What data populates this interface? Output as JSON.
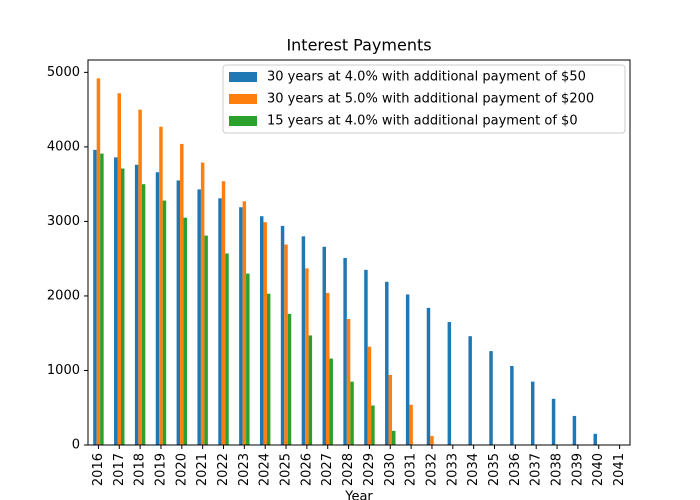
{
  "chart_data": {
    "type": "bar",
    "title": "Interest Payments",
    "x_label": "Year",
    "categories": [
      "2016",
      "2017",
      "2018",
      "2019",
      "2020",
      "2021",
      "2022",
      "2023",
      "2024",
      "2025",
      "2026",
      "2027",
      "2028",
      "2029",
      "2030",
      "2031",
      "2032",
      "2033",
      "2034",
      "2035",
      "2036",
      "2037",
      "2038",
      "2039",
      "2040",
      "2041"
    ],
    "series": [
      {
        "name": "30 years at 4.0% with additional payment of $50",
        "color": "#1f77b4",
        "values": [
          3960,
          3860,
          3760,
          3660,
          3550,
          3430,
          3310,
          3190,
          3070,
          2940,
          2800,
          2660,
          2510,
          2350,
          2190,
          2020,
          1840,
          1650,
          1460,
          1260,
          1060,
          850,
          620,
          390,
          150,
          0
        ]
      },
      {
        "name": "30 years at 5.0% with additional payment of $200",
        "color": "#ff7f0e",
        "values": [
          4920,
          4720,
          4500,
          4270,
          4040,
          3790,
          3540,
          3270,
          2990,
          2690,
          2370,
          2040,
          1690,
          1320,
          940,
          540,
          120,
          null,
          null,
          null,
          null,
          null,
          null,
          null,
          null,
          null
        ]
      },
      {
        "name": "15 years at 4.0% with additional payment of $0",
        "color": "#2ca02c",
        "values": [
          3910,
          3710,
          3500,
          3280,
          3050,
          2810,
          2570,
          2300,
          2030,
          1760,
          1470,
          1160,
          850,
          530,
          190,
          null,
          null,
          null,
          null,
          null,
          null,
          null,
          null,
          null,
          null,
          null
        ]
      }
    ],
    "ylim": [
      0,
      5166
    ],
    "yticks": [
      0,
      1000,
      2000,
      3000,
      4000,
      5000
    ],
    "legend": "upper right"
  }
}
